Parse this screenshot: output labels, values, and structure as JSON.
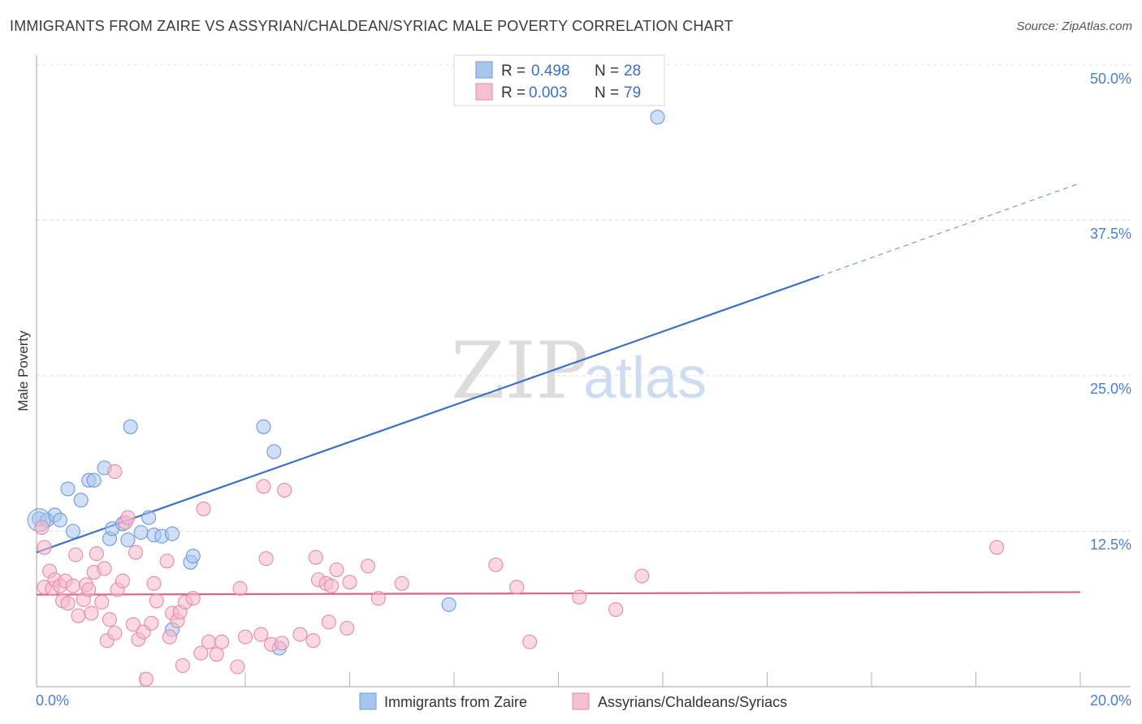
{
  "header": {
    "title": "IMMIGRANTS FROM ZAIRE VS ASSYRIAN/CHALDEAN/SYRIAC MALE POVERTY CORRELATION CHART",
    "source": "Source: ZipAtlas.com"
  },
  "watermark": {
    "zip": "ZIP",
    "atlas": "atlas"
  },
  "legend": {
    "r_label": "R =",
    "n_label": "N =",
    "blue": {
      "r": "0.498",
      "n": "28"
    },
    "pink": {
      "r": "0.003",
      "n": "79"
    }
  },
  "colors": {
    "blue": "#3d6fc4",
    "blue_fill": "#a8c5ee",
    "pink": "#e0608a",
    "pink_fill": "#f5b8cb",
    "axis_text": "#4a7fd0"
  },
  "chart_data": {
    "type": "scatter",
    "title": "IMMIGRANTS FROM ZAIRE VS ASSYRIAN/CHALDEAN/SYRIAC MALE POVERTY CORRELATION CHART",
    "xlabel": "",
    "ylabel": "Male Poverty",
    "xlim": [
      0,
      20
    ],
    "ylim": [
      0,
      50
    ],
    "x_tick_labels": [
      "0.0%",
      "20.0%"
    ],
    "y_ticks": [
      12.5,
      25.0,
      37.5,
      50.0
    ],
    "y_tick_labels": [
      "12.5%",
      "25.0%",
      "37.5%",
      "50.0%"
    ],
    "grid": true,
    "legend_position": "bottom",
    "series": [
      {
        "name": "Immigrants from Zaire",
        "color": "#3d6fc4",
        "trend": {
          "x0": 0,
          "y0": 10.8,
          "x1": 15.0,
          "y1": 33.0,
          "dashed_to_x": 20,
          "dashed_to_y": 40.5
        },
        "points": [
          [
            0.05,
            13.5
          ],
          [
            0.2,
            13.4
          ],
          [
            0.35,
            13.8
          ],
          [
            0.45,
            13.4
          ],
          [
            0.6,
            15.9
          ],
          [
            0.7,
            12.5
          ],
          [
            0.85,
            15.0
          ],
          [
            1.0,
            16.6
          ],
          [
            1.1,
            16.6
          ],
          [
            1.3,
            17.6
          ],
          [
            1.4,
            11.9
          ],
          [
            1.45,
            12.7
          ],
          [
            1.65,
            13.1
          ],
          [
            1.75,
            11.8
          ],
          [
            1.8,
            20.9
          ],
          [
            2.0,
            12.4
          ],
          [
            2.15,
            13.6
          ],
          [
            2.25,
            12.2
          ],
          [
            2.4,
            12.1
          ],
          [
            2.6,
            4.6
          ],
          [
            2.6,
            12.3
          ],
          [
            2.95,
            10.0
          ],
          [
            3.0,
            10.5
          ],
          [
            4.35,
            20.9
          ],
          [
            4.55,
            18.9
          ],
          [
            4.65,
            3.1
          ],
          [
            7.9,
            6.6
          ],
          [
            11.9,
            45.8
          ]
        ]
      },
      {
        "name": "Assyrians/Chaldeans/Syriacs",
        "color": "#e0608a",
        "trend": {
          "x0": 0,
          "y0": 7.4,
          "x1": 20,
          "y1": 7.6
        },
        "points": [
          [
            0.1,
            12.8
          ],
          [
            0.15,
            11.2
          ],
          [
            0.15,
            8.0
          ],
          [
            0.25,
            9.3
          ],
          [
            0.3,
            7.9
          ],
          [
            0.35,
            8.6
          ],
          [
            0.45,
            8.1
          ],
          [
            0.5,
            6.9
          ],
          [
            0.55,
            8.5
          ],
          [
            0.6,
            6.7
          ],
          [
            0.7,
            8.1
          ],
          [
            0.75,
            10.6
          ],
          [
            0.8,
            5.7
          ],
          [
            0.9,
            7.0
          ],
          [
            0.95,
            8.2
          ],
          [
            1.0,
            7.8
          ],
          [
            1.05,
            5.9
          ],
          [
            1.1,
            9.2
          ],
          [
            1.15,
            10.7
          ],
          [
            1.25,
            6.8
          ],
          [
            1.3,
            9.5
          ],
          [
            1.35,
            3.7
          ],
          [
            1.4,
            5.4
          ],
          [
            1.5,
            4.3
          ],
          [
            1.5,
            17.3
          ],
          [
            1.55,
            7.8
          ],
          [
            1.65,
            8.5
          ],
          [
            1.7,
            13.2
          ],
          [
            1.75,
            13.6
          ],
          [
            1.85,
            5.0
          ],
          [
            1.9,
            10.8
          ],
          [
            1.95,
            3.8
          ],
          [
            2.05,
            4.4
          ],
          [
            2.1,
            0.6
          ],
          [
            2.2,
            5.1
          ],
          [
            2.25,
            8.3
          ],
          [
            2.3,
            6.9
          ],
          [
            2.5,
            10.1
          ],
          [
            2.55,
            4.0
          ],
          [
            2.6,
            5.9
          ],
          [
            2.7,
            5.3
          ],
          [
            2.75,
            6.0
          ],
          [
            2.8,
            1.7
          ],
          [
            2.85,
            6.8
          ],
          [
            3.0,
            7.1
          ],
          [
            3.15,
            2.7
          ],
          [
            3.2,
            14.3
          ],
          [
            3.3,
            3.6
          ],
          [
            3.45,
            2.6
          ],
          [
            3.55,
            3.6
          ],
          [
            3.85,
            1.6
          ],
          [
            3.9,
            7.9
          ],
          [
            4.0,
            4.0
          ],
          [
            4.3,
            4.2
          ],
          [
            4.35,
            16.1
          ],
          [
            4.4,
            10.3
          ],
          [
            4.5,
            3.4
          ],
          [
            4.7,
            3.5
          ],
          [
            4.75,
            15.8
          ],
          [
            5.05,
            4.2
          ],
          [
            5.3,
            3.7
          ],
          [
            5.35,
            10.4
          ],
          [
            5.4,
            8.6
          ],
          [
            5.55,
            8.3
          ],
          [
            5.6,
            5.2
          ],
          [
            5.65,
            8.1
          ],
          [
            5.75,
            9.4
          ],
          [
            5.95,
            4.7
          ],
          [
            6.0,
            8.4
          ],
          [
            6.35,
            9.7
          ],
          [
            6.55,
            7.1
          ],
          [
            7.0,
            8.3
          ],
          [
            8.8,
            9.8
          ],
          [
            9.2,
            8.0
          ],
          [
            9.45,
            3.6
          ],
          [
            10.4,
            7.2
          ],
          [
            11.1,
            6.2
          ],
          [
            11.6,
            8.9
          ],
          [
            18.4,
            11.2
          ]
        ]
      }
    ]
  }
}
